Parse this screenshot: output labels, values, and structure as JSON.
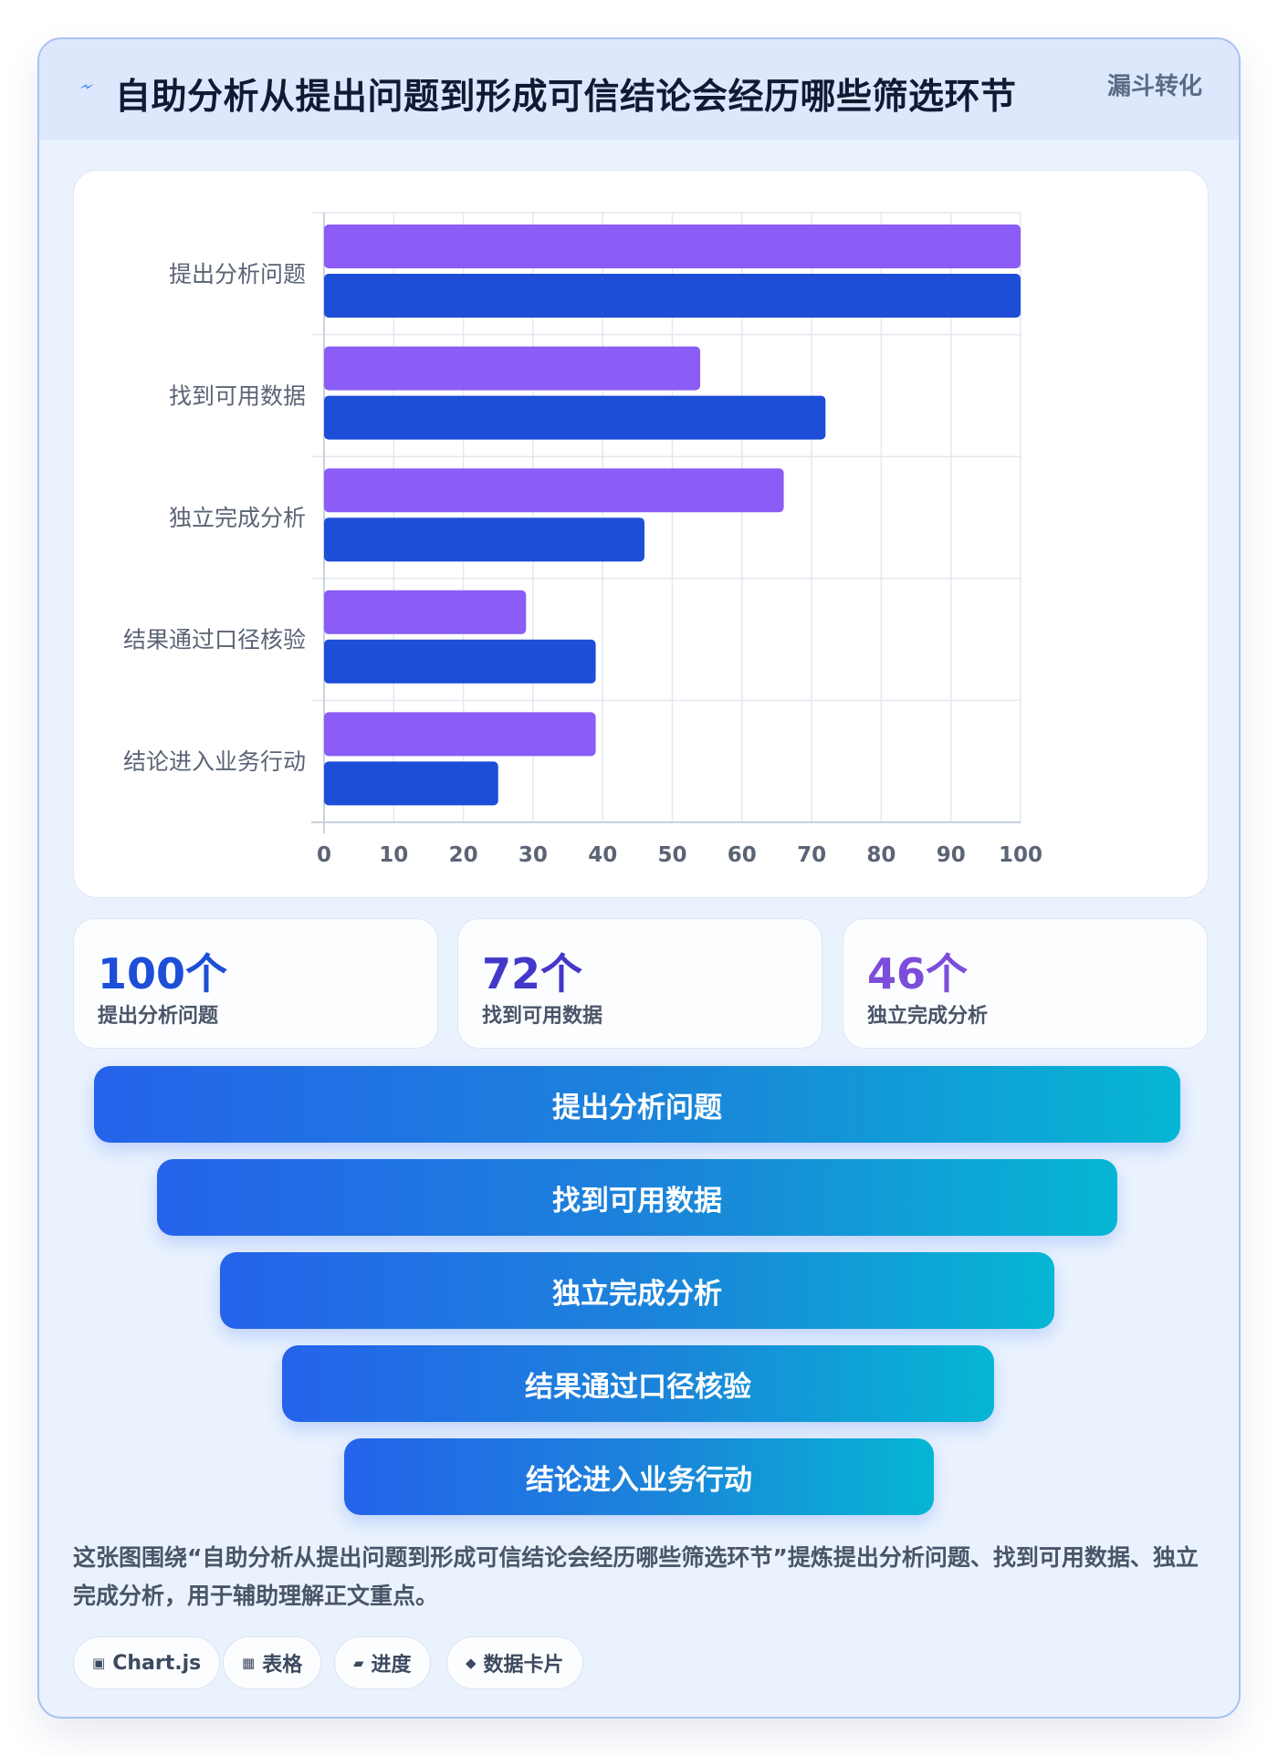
{
  "header": {
    "title": "自助分析从提出问题到形成可信结论会经历哪些筛选环节",
    "tag": "漏斗转化"
  },
  "chart_data": {
    "type": "bar",
    "orientation": "horizontal",
    "categories": [
      "提出分析问题",
      "找到可用数据",
      "独立完成分析",
      "结果通过口径核验",
      "结论进入业务行动"
    ],
    "series": [
      {
        "color": "#8b5cf6",
        "values": [
          100,
          54,
          66,
          29,
          39
        ]
      },
      {
        "color": "#1d4ed8",
        "values": [
          100,
          72,
          46,
          39,
          25
        ]
      }
    ],
    "xlim": [
      0,
      100
    ],
    "xticks": [
      0,
      10,
      20,
      30,
      40,
      50,
      60,
      70,
      80,
      90,
      100
    ],
    "grid": true,
    "legend": "none"
  },
  "stats": [
    {
      "value": "100个",
      "label": "提出分析问题",
      "color": "#1d4ed8"
    },
    {
      "value": "72个",
      "label": "找到可用数据",
      "color": "#4338ca"
    },
    {
      "value": "46个",
      "label": "独立完成分析",
      "color": "#7c4ddb"
    }
  ],
  "funnel": [
    "提出分析问题",
    "找到可用数据",
    "独立完成分析",
    "结果通过口径核验",
    "结论进入业务行动"
  ],
  "description": "这张图围绕“自助分析从提出问题到形成可信结论会经历哪些筛选环节”提炼提出分析问题、找到可用数据、独立完成分析，用于辅助理解正文重点。",
  "chips": [
    {
      "icon": "chart-icon",
      "glyph": "▣",
      "label": "Chart.js"
    },
    {
      "icon": "table-icon",
      "glyph": "▦",
      "label": "表格"
    },
    {
      "icon": "progress-icon",
      "glyph": "▰",
      "label": "进度"
    },
    {
      "icon": "card-icon",
      "glyph": "◆",
      "label": "数据卡片"
    }
  ]
}
